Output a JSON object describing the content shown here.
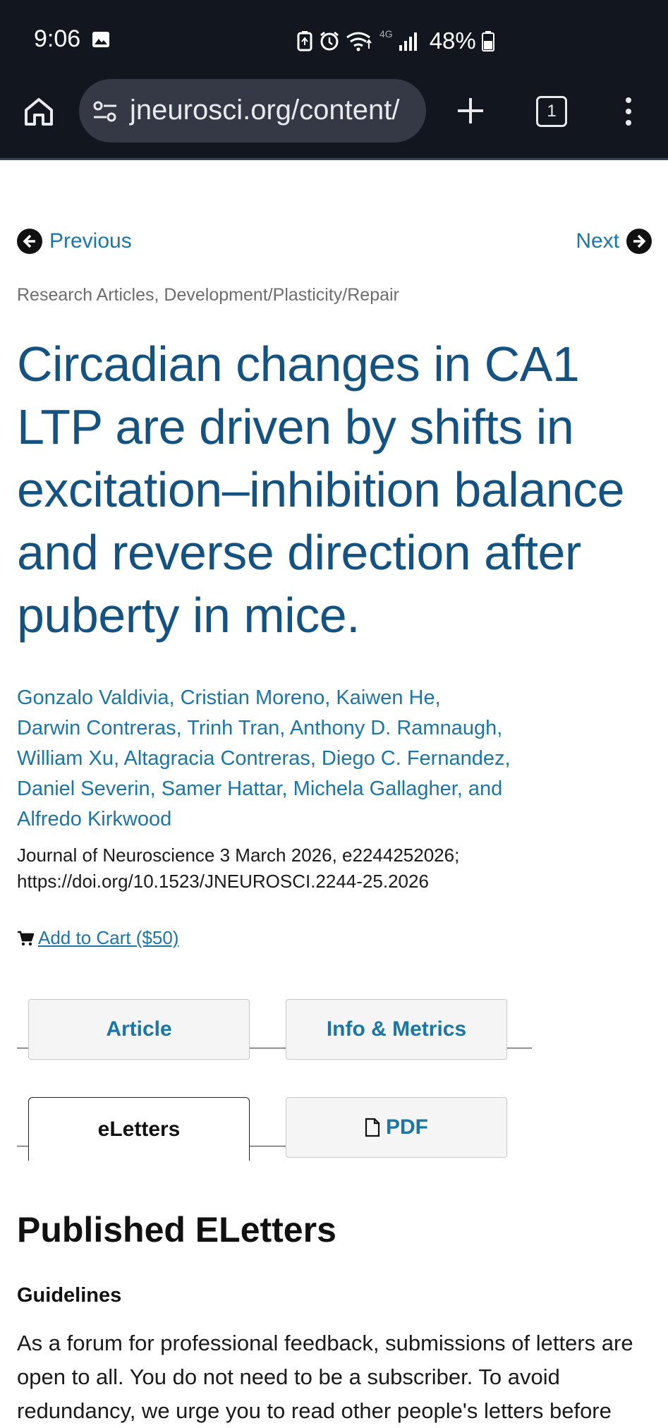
{
  "status_bar": {
    "time": "9:06",
    "network": "4G",
    "battery": "48%"
  },
  "browser": {
    "url": "jneurosci.org/content/",
    "tab_count": "1"
  },
  "article": {
    "nav_previous": "Previous",
    "nav_next": "Next",
    "category": "Research Articles, Development/Plasticity/Repair",
    "title": "Circadian changes in CA1 LTP are driven by shifts in excitation–inhibition balance and reverse direction after puberty in mice.",
    "authors": [
      "Gonzalo Valdivia, Cristian Moreno, Kaiwen He,",
      "Darwin Contreras, Trinh Tran, Anthony D. Ramnaugh,",
      "William Xu, Altagracia Contreras, Diego C. Fernandez,",
      "Daniel Severin, Samer Hattar, Michela Gallagher, and",
      "Alfredo Kirkwood"
    ],
    "citation": "Journal of Neuroscience 3 March 2026, e2244252026;",
    "doi": "https://doi.org/10.1523/JNEUROSCI.2244-25.2026",
    "cart": "Add to Cart ($50)"
  },
  "tabs": {
    "article": "Article",
    "info_metrics": "Info & Metrics",
    "eletters": "eLetters",
    "pdf": "PDF"
  },
  "eletters": {
    "heading": "Published ELetters",
    "guidelines_heading": "Guidelines",
    "guidelines_text": "As a forum for professional feedback, submissions of letters are open to all. You do not need to be a subscriber. To avoid redundancy, we urge you to read other people's letters before"
  }
}
